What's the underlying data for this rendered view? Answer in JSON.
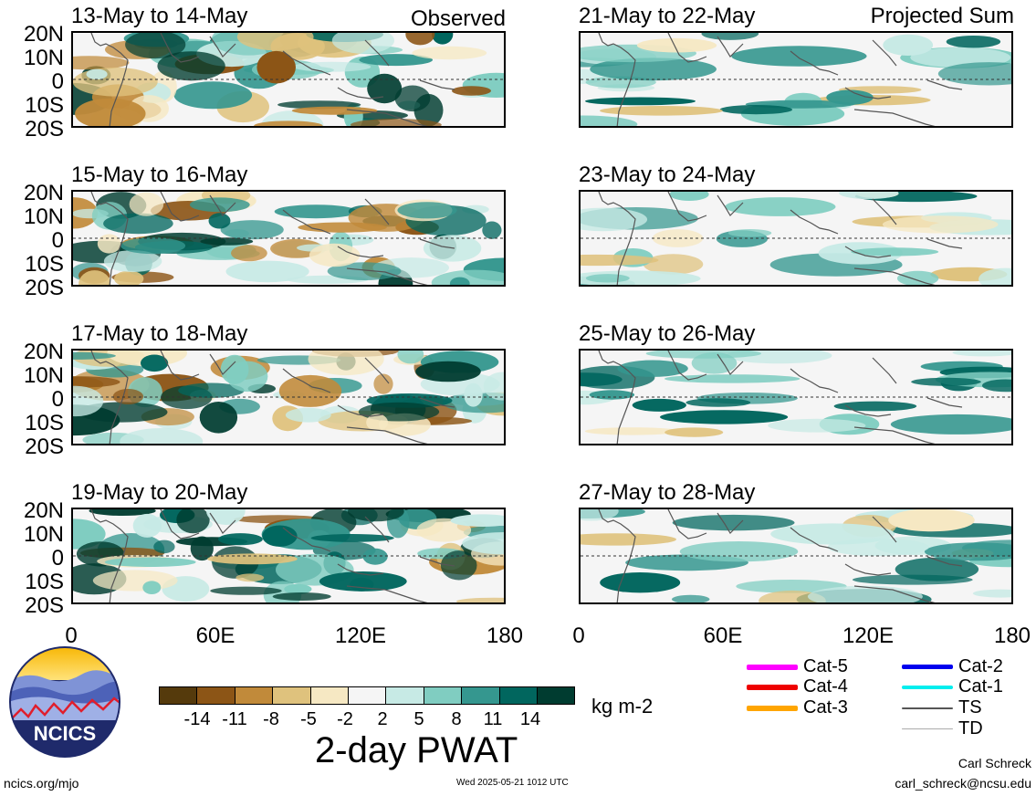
{
  "observed_label": "Observed",
  "projected_label": "Projected Sum",
  "lat_labels": [
    "20N",
    "10N",
    "0",
    "10S",
    "20S"
  ],
  "lon_labels": [
    "0",
    "60E",
    "120E",
    "180"
  ],
  "panels_left": [
    {
      "title": "13-May to 14-May"
    },
    {
      "title": "15-May to 16-May"
    },
    {
      "title": "17-May to 18-May"
    },
    {
      "title": "19-May to 20-May"
    }
  ],
  "panels_right": [
    {
      "title": "21-May to 22-May"
    },
    {
      "title": "23-May to 24-May"
    },
    {
      "title": "25-May to 26-May"
    },
    {
      "title": "27-May to 28-May"
    }
  ],
  "colorbar": {
    "colors": [
      "#553a0c",
      "#8c5516",
      "#c18a3a",
      "#dfc27d",
      "#f6e8c3",
      "#f5f5f5",
      "#c7eae5",
      "#80cdc1",
      "#35978f",
      "#01665e",
      "#003c30"
    ],
    "ticks": [
      "-14",
      "-11",
      "-8",
      "-5",
      "-2",
      "2",
      "5",
      "8",
      "11",
      "14"
    ],
    "units": "kg m-2",
    "title": "2-day PWAT"
  },
  "legend": [
    {
      "label": "Cat-5",
      "color": "#ff00ff",
      "icon": "thick-line"
    },
    {
      "label": "Cat-4",
      "color": "#ee0000",
      "icon": "thick-line"
    },
    {
      "label": "Cat-3",
      "color": "#ffa500",
      "icon": "thick-line"
    },
    {
      "label": "Cat-2",
      "color": "#0000ee",
      "icon": "thick-line"
    },
    {
      "label": "Cat-1",
      "color": "#00eeee",
      "icon": "thick-line"
    },
    {
      "label": "TS",
      "color": "#555555",
      "icon": "line"
    },
    {
      "label": "TD",
      "color": "#aaaaaa",
      "icon": "thin-line"
    }
  ],
  "logo_text": "NCICS",
  "footer": {
    "url": "ncics.org/mjo",
    "timestamp": "Wed 2025-05-21 1012 UTC",
    "author": "Carl Schreck",
    "email": "carl_schreck@ncsu.edu"
  }
}
